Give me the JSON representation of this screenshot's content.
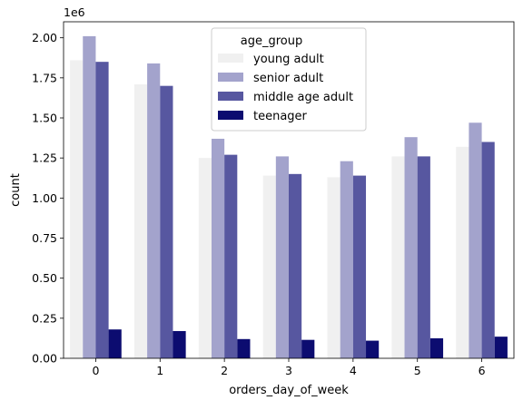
{
  "chart_data": {
    "type": "bar",
    "title": "",
    "xlabel": "orders_day_of_week",
    "ylabel": "count",
    "y_offset_label": "1e6",
    "categories": [
      "0",
      "1",
      "2",
      "3",
      "4",
      "5",
      "6"
    ],
    "ylim": [
      0,
      2.1
    ],
    "yticks": [
      0.0,
      0.25,
      0.5,
      0.75,
      1.0,
      1.25,
      1.5,
      1.75,
      2.0
    ],
    "ytick_labels": [
      "0.00",
      "0.25",
      "0.50",
      "0.75",
      "1.00",
      "1.25",
      "1.50",
      "1.75",
      "2.00"
    ],
    "grid": false,
    "legend": {
      "title": "age_group",
      "placement": "top-center"
    },
    "series": [
      {
        "name": "young adult",
        "color": "#f0f0f0",
        "values": [
          1.86,
          1.71,
          1.25,
          1.14,
          1.13,
          1.26,
          1.32
        ]
      },
      {
        "name": "senior adult",
        "color": "#a3a3cc",
        "values": [
          2.01,
          1.84,
          1.37,
          1.26,
          1.23,
          1.38,
          1.47
        ]
      },
      {
        "name": "middle age adult",
        "color": "#5757a0",
        "values": [
          1.85,
          1.7,
          1.27,
          1.15,
          1.14,
          1.26,
          1.35
        ]
      },
      {
        "name": "teenager",
        "color": "#0c0c70",
        "values": [
          0.18,
          0.17,
          0.12,
          0.115,
          0.11,
          0.125,
          0.135
        ]
      }
    ]
  }
}
